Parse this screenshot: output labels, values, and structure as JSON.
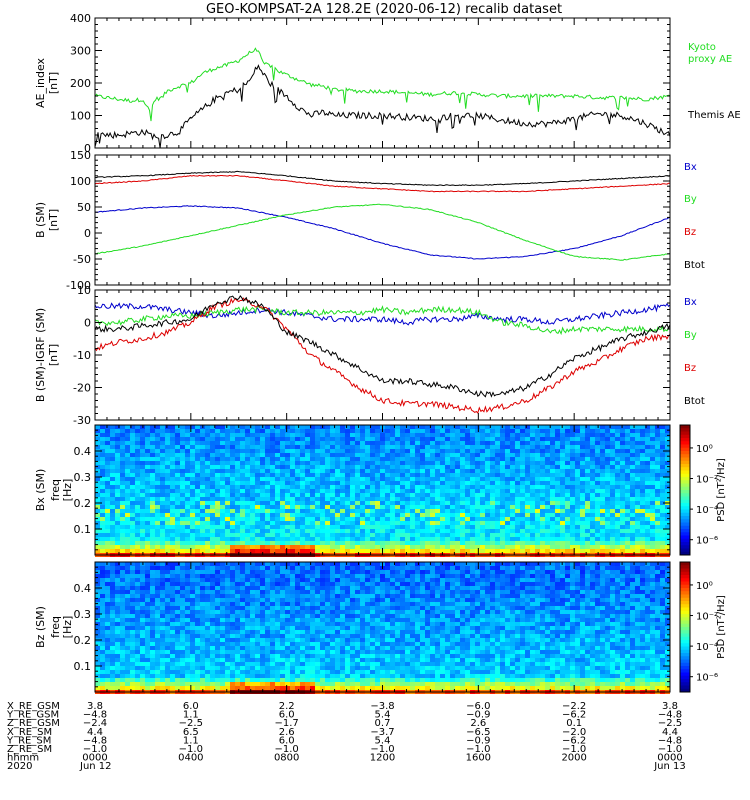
{
  "title": "GEO-KOMPSAT-2A 128.2E (2020-06-12) recalib dataset",
  "colors": {
    "black": "#000000",
    "green": "#22dd22",
    "blue": "#0000cc",
    "red": "#dd0000"
  },
  "chart_data": [
    {
      "type": "line",
      "panel": "ae",
      "ylabel": "AE_index",
      "yunit": "[nT]",
      "ylim": [
        0,
        400
      ],
      "yticks": [
        0,
        100,
        200,
        300,
        400
      ],
      "xlim_hours": [
        0,
        24
      ],
      "series": [
        {
          "name": "Kyoto proxy AE",
          "label_lines": [
            "Kyoto",
            "proxy AE"
          ],
          "color": "green",
          "x": [
            0,
            0.5,
            1,
            1.5,
            2,
            2.3,
            2.5,
            2.8,
            3,
            3.5,
            4,
            4.5,
            5,
            5.5,
            6,
            6.5,
            6.8,
            7,
            7.3,
            7.7,
            8,
            8.5,
            9,
            9.5,
            10,
            11,
            12,
            13,
            14,
            15,
            16,
            17,
            18,
            19,
            20,
            21,
            22,
            23,
            24
          ],
          "y": [
            160,
            155,
            150,
            145,
            150,
            110,
            150,
            155,
            175,
            190,
            200,
            230,
            245,
            255,
            270,
            295,
            305,
            260,
            255,
            235,
            225,
            210,
            195,
            190,
            180,
            175,
            175,
            170,
            165,
            170,
            165,
            160,
            160,
            160,
            160,
            155,
            155,
            150,
            160
          ]
        },
        {
          "name": "Themis AE",
          "label_lines": [
            "Themis AE"
          ],
          "color": "black",
          "x": [
            0,
            0.5,
            1,
            1.5,
            2,
            2.5,
            3,
            3.5,
            4,
            4.5,
            5,
            5.5,
            6,
            6.5,
            6.8,
            7,
            7.3,
            7.7,
            8,
            8.5,
            9,
            9.5,
            10,
            11,
            12,
            13,
            14,
            15,
            16,
            17,
            18,
            19,
            20,
            21,
            22,
            23,
            24
          ],
          "y": [
            45,
            40,
            40,
            45,
            50,
            35,
            40,
            50,
            90,
            120,
            150,
            170,
            180,
            210,
            255,
            230,
            200,
            175,
            160,
            125,
            100,
            110,
            100,
            100,
            100,
            95,
            90,
            100,
            100,
            85,
            75,
            75,
            90,
            105,
            100,
            75,
            40
          ]
        }
      ]
    },
    {
      "type": "line",
      "panel": "bsm",
      "ylabel": "B (SM)",
      "yunit": "[nT]",
      "ylim": [
        -100,
        150
      ],
      "yticks": [
        -100,
        -50,
        0,
        50,
        100,
        150
      ],
      "xlim_hours": [
        0,
        24
      ],
      "series": [
        {
          "name": "Bx",
          "color": "blue",
          "x": [
            0,
            2,
            4,
            6,
            8,
            10,
            12,
            14,
            16,
            18,
            20,
            22,
            24
          ],
          "y": [
            40,
            48,
            52,
            48,
            30,
            8,
            -20,
            -42,
            -50,
            -45,
            -30,
            -5,
            30
          ]
        },
        {
          "name": "By",
          "color": "green",
          "x": [
            0,
            2,
            4,
            6,
            8,
            10,
            12,
            14,
            16,
            18,
            20,
            22,
            24
          ],
          "y": [
            -40,
            -25,
            -5,
            15,
            35,
            50,
            55,
            45,
            20,
            -15,
            -45,
            -52,
            -40
          ]
        },
        {
          "name": "Bz",
          "color": "red",
          "x": [
            0,
            2,
            4,
            6,
            8,
            10,
            12,
            14,
            16,
            18,
            20,
            22,
            24
          ],
          "y": [
            95,
            100,
            110,
            110,
            100,
            90,
            85,
            80,
            80,
            80,
            85,
            90,
            95
          ]
        },
        {
          "name": "Btot",
          "color": "black",
          "x": [
            0,
            2,
            4,
            6,
            8,
            10,
            12,
            14,
            16,
            18,
            20,
            22,
            24
          ],
          "y": [
            107,
            110,
            115,
            118,
            110,
            100,
            95,
            92,
            92,
            95,
            100,
            105,
            110
          ]
        }
      ]
    },
    {
      "type": "line",
      "panel": "dbsm",
      "ylabel": "B (SM)-IGRF (SM)",
      "yunit": "[nT]",
      "ylim": [
        -30,
        10
      ],
      "yticks": [
        -30,
        -20,
        -10,
        0,
        10
      ],
      "xlim_hours": [
        0,
        24
      ],
      "series": [
        {
          "name": "Bx",
          "color": "blue",
          "x": [
            0,
            1,
            2,
            3,
            4,
            5,
            6,
            7,
            8,
            9,
            10,
            11,
            12,
            13,
            14,
            15,
            16,
            17,
            18,
            19,
            20,
            21,
            22,
            23,
            24
          ],
          "y": [
            5,
            5,
            5,
            4,
            3,
            2,
            3,
            4,
            3,
            2,
            1,
            1,
            1,
            0,
            1,
            1,
            2,
            1,
            1,
            0,
            1,
            2,
            3,
            4,
            5
          ]
        },
        {
          "name": "By",
          "color": "green",
          "x": [
            0,
            1,
            2,
            3,
            4,
            5,
            6,
            7,
            8,
            9,
            10,
            11,
            12,
            13,
            14,
            15,
            16,
            17,
            18,
            19,
            20,
            21,
            22,
            23,
            24
          ],
          "y": [
            0,
            0,
            1,
            2,
            2,
            3,
            4,
            4,
            3,
            3,
            3,
            3,
            4,
            3,
            4,
            4,
            3,
            0,
            -1,
            -3,
            -2,
            -2,
            -2,
            -2,
            -2
          ]
        },
        {
          "name": "Bz",
          "color": "red",
          "x": [
            0,
            1,
            2,
            3,
            4,
            5,
            6,
            7,
            8,
            9,
            10,
            11,
            12,
            13,
            14,
            15,
            16,
            17,
            18,
            19,
            20,
            21,
            22,
            23,
            24
          ],
          "y": [
            -8,
            -6,
            -5,
            -3,
            0,
            5,
            7,
            5,
            -2,
            -10,
            -15,
            -20,
            -24,
            -25,
            -25,
            -26,
            -27,
            -26,
            -24,
            -20,
            -15,
            -12,
            -8,
            -5,
            -4
          ]
        },
        {
          "name": "Btot",
          "color": "black",
          "x": [
            0,
            1,
            2,
            3,
            4,
            5,
            6,
            7,
            8,
            9,
            10,
            11,
            12,
            13,
            14,
            15,
            16,
            17,
            18,
            19,
            20,
            21,
            22,
            23,
            24
          ],
          "y": [
            -2,
            -2,
            -1,
            0,
            1,
            6,
            8,
            5,
            -3,
            -6,
            -10,
            -14,
            -18,
            -18,
            -19,
            -20,
            -22,
            -22,
            -20,
            -16,
            -11,
            -8,
            -5,
            -3,
            -1
          ]
        }
      ]
    },
    {
      "type": "heatmap",
      "panel": "specbx",
      "ylabel": "Bx (SM)",
      "yunit_lines": [
        "freq",
        "[Hz]"
      ],
      "ylim": [
        0,
        0.5
      ],
      "yticks": [
        0.1,
        0.2,
        0.3,
        0.4
      ],
      "xlim_hours": [
        0,
        24
      ],
      "colorbar_label": "PSD [nT²/Hz]",
      "colorbar_ticks": [
        "10⁰",
        "10⁻²",
        "10⁻⁴",
        "10⁻⁶"
      ],
      "colorbar_exponents": [
        0,
        -2,
        -4,
        -6
      ],
      "colorbar_range_exp": [
        -7,
        1.5
      ]
    },
    {
      "type": "heatmap",
      "panel": "specbz",
      "ylabel": "Bz (SM)",
      "yunit_lines": [
        "freq",
        "[Hz]"
      ],
      "ylim": [
        0,
        0.5
      ],
      "yticks": [
        0.1,
        0.2,
        0.3,
        0.4
      ],
      "xlim_hours": [
        0,
        24
      ],
      "colorbar_label": "PSD [nT²/Hz]",
      "colorbar_ticks": [
        "10⁰",
        "10⁻²",
        "10⁻⁴",
        "10⁻⁶"
      ],
      "colorbar_exponents": [
        0,
        -2,
        -4,
        -6
      ],
      "colorbar_range_exp": [
        -7,
        1.5
      ]
    }
  ],
  "x_axis": {
    "tick_hours": [
      0,
      4,
      8,
      12,
      16,
      20,
      24
    ],
    "rows": [
      {
        "label": "X_RE_GSM",
        "values": [
          "3.8",
          "6.0",
          "2.2",
          "−3.8",
          "−6.0",
          "−2.2",
          "3.8"
        ]
      },
      {
        "label": "Y_RE_GSM",
        "values": [
          "−4.8",
          "1.1",
          "6.0",
          "5.4",
          "−0.9",
          "−6.2",
          "−4.8"
        ]
      },
      {
        "label": "Z_RE_GSM",
        "values": [
          "−2.4",
          "−2.5",
          "−1.7",
          "0.7",
          "2.6",
          "0.1",
          "−2.5"
        ]
      },
      {
        "label": "X_RE_SM",
        "values": [
          "4.4",
          "6.5",
          "2.6",
          "−3.7",
          "−6.5",
          "−2.0",
          "4.4"
        ]
      },
      {
        "label": "Y_RE_SM",
        "values": [
          "−4.8",
          "1.1",
          "6.0",
          "5.4",
          "−0.9",
          "−6.2",
          "−4.8"
        ]
      },
      {
        "label": "Z_RE_SM",
        "values": [
          "−1.0",
          "−1.0",
          "−1.0",
          "−1.0",
          "−1.0",
          "−1.0",
          "−1.0"
        ]
      },
      {
        "label": "hhmm",
        "values": [
          "0000",
          "0400",
          "0800",
          "1200",
          "1600",
          "2000",
          "0000"
        ]
      }
    ],
    "date_row": {
      "label": "2020",
      "start": "Jun 12",
      "end": "Jun 13"
    }
  }
}
